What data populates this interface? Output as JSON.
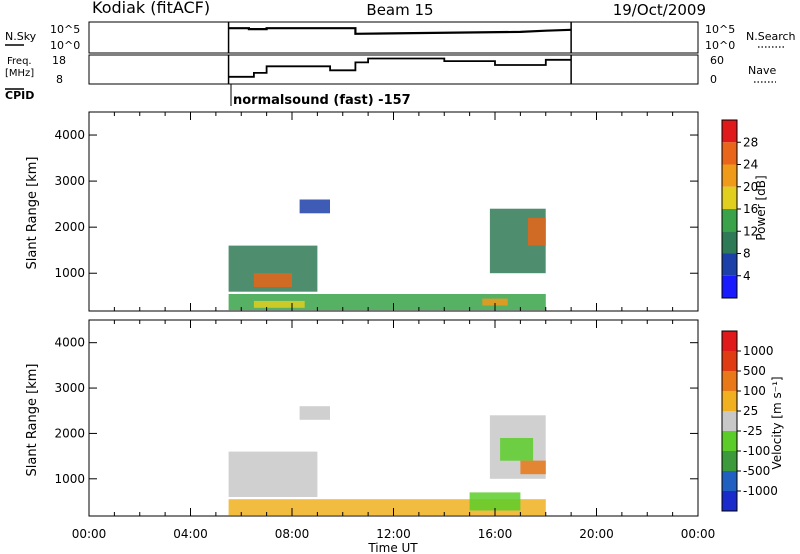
{
  "header": {
    "station": "Kodiak (fitACF)",
    "beam": "Beam 15",
    "date": "19/Oct/2009",
    "cpid_label": "CPID",
    "cpid_text": "normalsound (fast) -157"
  },
  "chart_data": [
    {
      "type": "line",
      "name": "sky-noise-panel",
      "left_label": "N.Sky",
      "right_label": "N.Search",
      "left_ticks": [
        "10^5",
        "10^0"
      ],
      "right_ticks": [
        "10^5",
        "10^0"
      ],
      "x_range_hours": [
        0,
        24
      ],
      "active_interval_hours": [
        5.5,
        19.0
      ],
      "series": [
        {
          "x": [
            5.5,
            6.3,
            6.3,
            7.0,
            7.0,
            10.5,
            10.5,
            17.0,
            18.0,
            19.0
          ],
          "values": [
            0.8,
            0.8,
            0.77,
            0.77,
            0.8,
            0.8,
            0.62,
            0.68,
            0.72,
            0.75
          ]
        }
      ]
    },
    {
      "type": "line",
      "name": "frequency-nave-panel",
      "left_label": "Freq.",
      "left_unit": "[MHz]",
      "right_label": "Nave",
      "left_ticks": [
        "18",
        "8"
      ],
      "right_ticks": [
        "60",
        "0"
      ],
      "x_range_hours": [
        0,
        24
      ],
      "active_interval_hours": [
        5.5,
        19.0
      ],
      "series": [
        {
          "x": [
            5.5,
            6.5,
            6.5,
            7.0,
            7.0,
            9.5,
            9.5,
            10.5,
            10.5,
            11.0,
            11.0,
            14.0,
            14.0,
            16.0,
            16.0,
            18.0,
            18.0,
            19.0
          ],
          "values": [
            10.0,
            10.0,
            11.5,
            11.5,
            14.0,
            14.0,
            12.5,
            12.5,
            15.5,
            15.5,
            17.0,
            17.0,
            16.0,
            16.0,
            14.5,
            14.5,
            16.5,
            16.5
          ]
        }
      ]
    },
    {
      "type": "heatmap",
      "name": "power-panel",
      "xlabel": "",
      "ylabel": "Slant Range [km]",
      "yticks": [
        "1000",
        "2000",
        "3000",
        "4000"
      ],
      "ylim": [
        180,
        4500
      ],
      "colorbar_label": "Power [dB]",
      "colorbar_ticks": [
        "4",
        "8",
        "12",
        "16",
        "20",
        "24",
        "28"
      ],
      "colors": [
        "#1a1aff",
        "#1c3fa8",
        "#2f7a56",
        "#3aa34a",
        "#e0cf1f",
        "#f09a1a",
        "#e8651a",
        "#e01a1a"
      ],
      "regions": [
        {
          "x": [
            5.5,
            9.0
          ],
          "y": [
            600,
            1600
          ],
          "level": 2
        },
        {
          "x": [
            6.5,
            8.0
          ],
          "y": [
            700,
            1000
          ],
          "level": 6
        },
        {
          "x": [
            8.3,
            9.5
          ],
          "y": [
            2300,
            2600
          ],
          "level": 1
        },
        {
          "x": [
            5.5,
            18.0
          ],
          "y": [
            200,
            550
          ],
          "level": 3
        },
        {
          "x": [
            6.5,
            8.5
          ],
          "y": [
            250,
            400
          ],
          "level": 4
        },
        {
          "x": [
            15.5,
            16.5
          ],
          "y": [
            300,
            450
          ],
          "level": 5
        },
        {
          "x": [
            15.8,
            18.0
          ],
          "y": [
            1000,
            2400
          ],
          "level": 2
        },
        {
          "x": [
            17.3,
            18.0
          ],
          "y": [
            1600,
            2200
          ],
          "level": 6
        }
      ]
    },
    {
      "type": "heatmap",
      "name": "velocity-panel",
      "xlabel": "Time UT",
      "ylabel": "Slant Range [km]",
      "yticks": [
        "1000",
        "2000",
        "3000",
        "4000"
      ],
      "ylim": [
        180,
        4500
      ],
      "xticks": [
        "00:00",
        "04:00",
        "08:00",
        "12:00",
        "16:00",
        "20:00",
        "00:00"
      ],
      "colorbar_label": "Velocity [m s⁻¹]",
      "colorbar_ticks": [
        "1000",
        "500",
        "100",
        "25",
        "-25",
        "-100",
        "-500",
        "-1000"
      ],
      "colors": [
        "#1a2bcc",
        "#2060c0",
        "#3c9a3c",
        "#5ccc2a",
        "#c8c8c8",
        "#f0b020",
        "#e87818",
        "#e03c14",
        "#e01a1a"
      ],
      "regions": [
        {
          "x": [
            5.5,
            9.0
          ],
          "y": [
            600,
            1600
          ],
          "level": 4
        },
        {
          "x": [
            8.3,
            9.5
          ],
          "y": [
            2300,
            2600
          ],
          "level": 4
        },
        {
          "x": [
            5.5,
            18.0
          ],
          "y": [
            200,
            550
          ],
          "level": 5
        },
        {
          "x": [
            15.8,
            18.0
          ],
          "y": [
            1000,
            2400
          ],
          "level": 4
        },
        {
          "x": [
            16.2,
            17.5
          ],
          "y": [
            1400,
            1900
          ],
          "level": 3
        },
        {
          "x": [
            15.0,
            17.0
          ],
          "y": [
            300,
            700
          ],
          "level": 3
        },
        {
          "x": [
            17.0,
            18.0
          ],
          "y": [
            1100,
            1400
          ],
          "level": 6
        }
      ]
    }
  ]
}
